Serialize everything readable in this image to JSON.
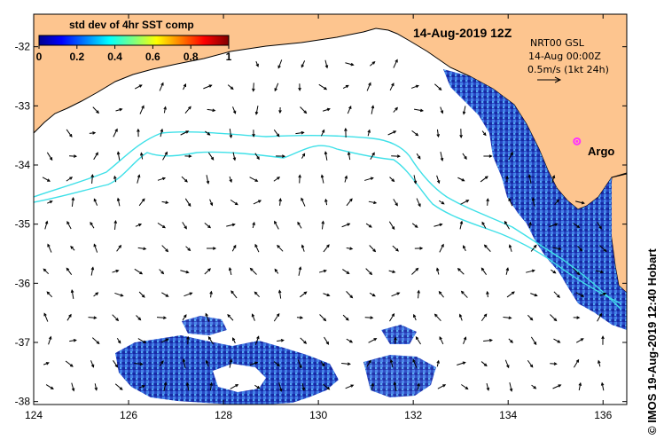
{
  "map": {
    "title": "14-Aug-2019 12Z",
    "credit": "© IMOS 19-Aug-2019 12:40 Hobart",
    "lon_range": [
      124,
      136.5
    ],
    "lat_range": [
      -38.05,
      -31.45
    ],
    "lon_ticks": [
      {
        "value": 124,
        "label": "124"
      },
      {
        "value": 126,
        "label": "126"
      },
      {
        "value": 128,
        "label": "128"
      },
      {
        "value": 130,
        "label": "130"
      },
      {
        "value": 132,
        "label": "132"
      },
      {
        "value": 134,
        "label": "134"
      },
      {
        "value": 136,
        "label": "136"
      }
    ],
    "lat_ticks": [
      {
        "value": -32,
        "label": "-32"
      },
      {
        "value": -33,
        "label": "-33"
      },
      {
        "value": -34,
        "label": "-34"
      },
      {
        "value": -35,
        "label": "-35"
      },
      {
        "value": -36,
        "label": "-36"
      },
      {
        "value": -37,
        "label": "-37"
      },
      {
        "value": -38,
        "label": "-38"
      }
    ]
  },
  "colorbar": {
    "title": "std dev of 4hr SST comp",
    "ticks": [
      {
        "value": 0,
        "label": "0"
      },
      {
        "value": 0.2,
        "label": "0.2"
      },
      {
        "value": 0.4,
        "label": "0.4"
      },
      {
        "value": 0.6,
        "label": "0.6"
      },
      {
        "value": 0.8,
        "label": "0.8"
      },
      {
        "value": 1,
        "label": "1"
      }
    ]
  },
  "legend": {
    "line1": "NRT00 GSL",
    "line2": "14-Aug 00:00Z",
    "line3": "0.5m/s (1kt 24h)"
  },
  "argo": {
    "label": "Argo",
    "lon": 135.45,
    "lat": -33.6,
    "color": "#ff33ff"
  },
  "colors": {
    "land": "#fdc58f",
    "coastline": "#000000",
    "contour": "#3fe0e8",
    "arrow": "#000000",
    "sst_dark": "#0b1f9e",
    "sst_mid": "#2d5fe0",
    "sst_light": "#47a9f0"
  }
}
